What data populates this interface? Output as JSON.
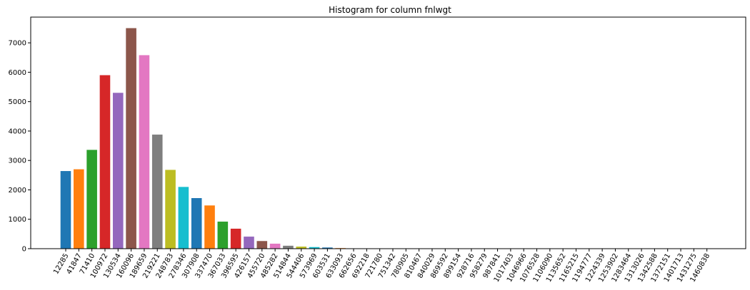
{
  "chart_data": {
    "type": "bar",
    "title": "Histogram for column fnlwgt",
    "xlabel": "",
    "ylabel": "",
    "ylim": [
      0,
      7875
    ],
    "yticks": [
      0,
      1000,
      2000,
      3000,
      4000,
      5000,
      6000,
      7000
    ],
    "grid": false,
    "categories": [
      "12285",
      "41847",
      "71410",
      "100972",
      "130534",
      "160096",
      "189659",
      "219221",
      "248783",
      "278346",
      "307908",
      "337470",
      "367033",
      "396595",
      "426157",
      "455720",
      "485282",
      "514844",
      "544406",
      "573969",
      "603531",
      "633093",
      "662656",
      "692218",
      "721780",
      "751342",
      "780905",
      "810467",
      "840029",
      "869592",
      "899154",
      "928716",
      "958279",
      "987841",
      "1017403",
      "1046966",
      "1076528",
      "1106090",
      "1135652",
      "1165215",
      "1194777",
      "1224339",
      "1253902",
      "1283464",
      "1313026",
      "1342588",
      "1372151",
      "1401713",
      "1431275",
      "1460838"
    ],
    "values": [
      2640,
      2700,
      3360,
      5900,
      5300,
      7500,
      6580,
      3880,
      2680,
      2100,
      1720,
      1470,
      920,
      680,
      410,
      260,
      170,
      100,
      70,
      55,
      40,
      20,
      12,
      10,
      6,
      3,
      2,
      2,
      1,
      1,
      1,
      1,
      1,
      1,
      0,
      0,
      0,
      0,
      0,
      0,
      0,
      0,
      0,
      0,
      0,
      0,
      0,
      0,
      0,
      0
    ],
    "colors": [
      "#1f77b4",
      "#ff7f0e",
      "#2ca02c",
      "#d62728",
      "#9467bd",
      "#8c564b",
      "#e377c2",
      "#7f7f7f",
      "#bcbd22",
      "#17becf"
    ]
  }
}
